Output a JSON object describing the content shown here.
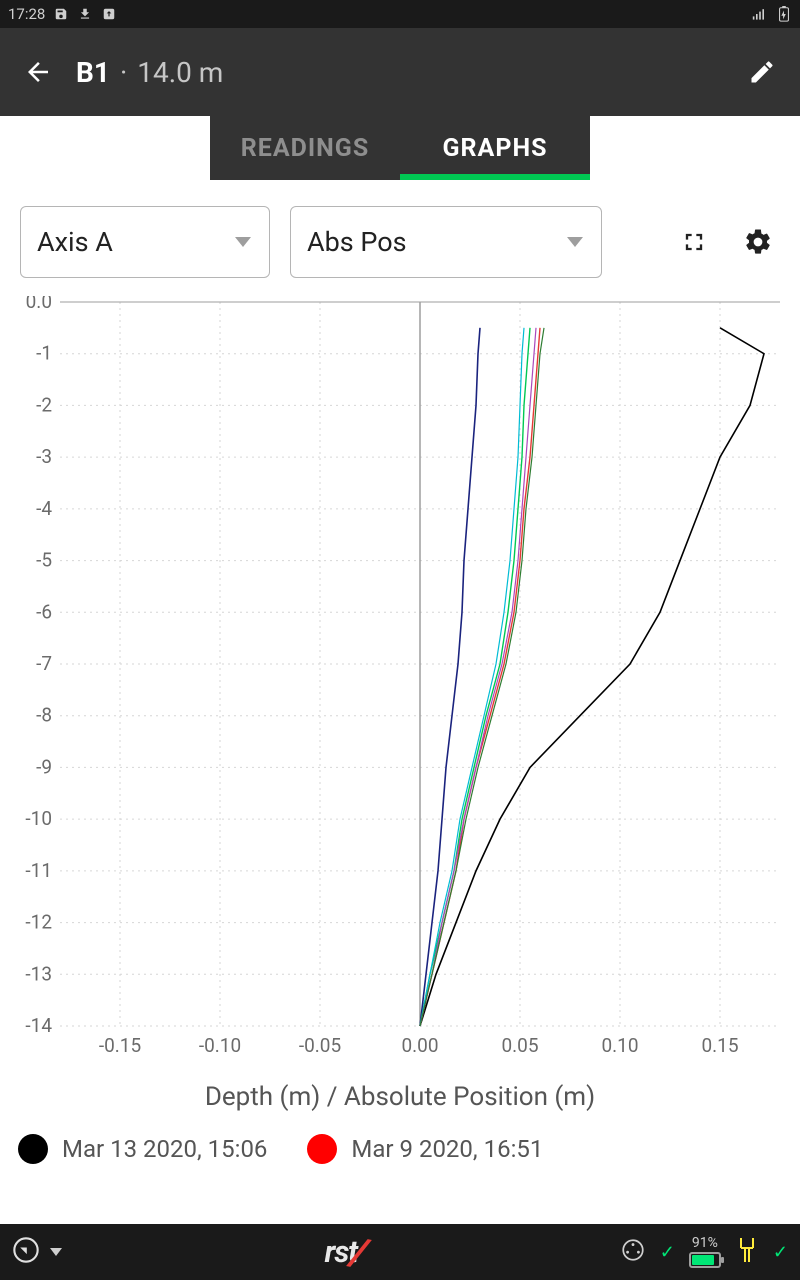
{
  "status": {
    "time": "17:28"
  },
  "appbar": {
    "title_main": "B1",
    "title_sep": "·",
    "title_sub": "14.0 m"
  },
  "tabs": {
    "readings": "READINGS",
    "graphs": "GRAPHS",
    "active": "graphs"
  },
  "selects": {
    "axis": "Axis A",
    "mode": "Abs Pos"
  },
  "chart": {
    "type": "line-vertical",
    "xlim": [
      -0.18,
      0.18
    ],
    "ylim": [
      -14,
      0
    ],
    "xticks": [
      -0.15,
      -0.1,
      -0.05,
      0.0,
      0.05,
      0.1,
      0.15
    ],
    "xtick_labels": [
      "-0.15",
      "-0.10",
      "-0.05",
      "0.00",
      "0.05",
      "0.10",
      "0.15"
    ],
    "yticks": [
      0,
      -1,
      -2,
      -3,
      -4,
      -5,
      -6,
      -7,
      -8,
      -9,
      -10,
      -11,
      -12,
      -13,
      -14
    ],
    "ytick_labels": [
      "0.0",
      "-1",
      "-2",
      "-3",
      "-4",
      "-5",
      "-6",
      "-7",
      "-8",
      "-9",
      "-10",
      "-11",
      "-12",
      "-13",
      "-14"
    ],
    "grid_color": "#d6d6d6",
    "background": "#ffffff",
    "axis_title": "Depth (m) / Absolute Position (m)",
    "series": [
      {
        "name": "blue",
        "color": "#1a237e",
        "width": 1.6,
        "points": [
          [
            0.03,
            -0.5
          ],
          [
            0.029,
            -1
          ],
          [
            0.028,
            -2
          ],
          [
            0.026,
            -3
          ],
          [
            0.024,
            -4
          ],
          [
            0.022,
            -5
          ],
          [
            0.021,
            -6
          ],
          [
            0.019,
            -7
          ],
          [
            0.016,
            -8
          ],
          [
            0.013,
            -9
          ],
          [
            0.011,
            -10
          ],
          [
            0.009,
            -11
          ],
          [
            0.006,
            -12
          ],
          [
            0.003,
            -13
          ],
          [
            0.0,
            -14
          ]
        ]
      },
      {
        "name": "black",
        "color": "#000000",
        "width": 1.6,
        "points": [
          [
            0.15,
            -0.5
          ],
          [
            0.172,
            -1
          ],
          [
            0.165,
            -2
          ],
          [
            0.15,
            -3
          ],
          [
            0.14,
            -4
          ],
          [
            0.13,
            -5
          ],
          [
            0.12,
            -6
          ],
          [
            0.105,
            -7
          ],
          [
            0.08,
            -8
          ],
          [
            0.055,
            -9
          ],
          [
            0.04,
            -10
          ],
          [
            0.028,
            -11
          ],
          [
            0.018,
            -12
          ],
          [
            0.008,
            -13
          ],
          [
            0.0,
            -14
          ]
        ]
      },
      {
        "name": "red",
        "color": "#e53935",
        "width": 1.4,
        "points": [
          [
            0.06,
            -0.5
          ],
          [
            0.059,
            -1
          ],
          [
            0.057,
            -2
          ],
          [
            0.055,
            -3
          ],
          [
            0.052,
            -4
          ],
          [
            0.05,
            -5
          ],
          [
            0.047,
            -6
          ],
          [
            0.042,
            -7
          ],
          [
            0.035,
            -8
          ],
          [
            0.028,
            -9
          ],
          [
            0.025,
            -9.5
          ],
          [
            0.022,
            -10
          ],
          [
            0.018,
            -11
          ],
          [
            0.012,
            -12
          ],
          [
            0.006,
            -13
          ],
          [
            0.0,
            -14
          ]
        ]
      },
      {
        "name": "green",
        "color": "#00c853",
        "width": 1.4,
        "points": [
          [
            0.055,
            -0.5
          ],
          [
            0.054,
            -1
          ],
          [
            0.052,
            -2
          ],
          [
            0.051,
            -3
          ],
          [
            0.049,
            -4
          ],
          [
            0.047,
            -5
          ],
          [
            0.044,
            -6
          ],
          [
            0.04,
            -7
          ],
          [
            0.033,
            -8
          ],
          [
            0.027,
            -9
          ],
          [
            0.024,
            -9.5
          ],
          [
            0.021,
            -10
          ],
          [
            0.017,
            -11
          ],
          [
            0.011,
            -12
          ],
          [
            0.005,
            -13
          ],
          [
            0.0,
            -14
          ]
        ]
      },
      {
        "name": "cyan",
        "color": "#00bcd4",
        "width": 1.2,
        "points": [
          [
            0.052,
            -0.5
          ],
          [
            0.051,
            -1
          ],
          [
            0.05,
            -2
          ],
          [
            0.049,
            -3
          ],
          [
            0.047,
            -4
          ],
          [
            0.045,
            -5
          ],
          [
            0.042,
            -6
          ],
          [
            0.038,
            -7
          ],
          [
            0.032,
            -8
          ],
          [
            0.026,
            -9
          ],
          [
            0.023,
            -9.5
          ],
          [
            0.02,
            -10
          ],
          [
            0.016,
            -11
          ],
          [
            0.01,
            -12
          ],
          [
            0.005,
            -13
          ],
          [
            0.0,
            -14
          ]
        ]
      },
      {
        "name": "magenta",
        "color": "#ab47bc",
        "width": 1.2,
        "points": [
          [
            0.058,
            -0.5
          ],
          [
            0.057,
            -1
          ],
          [
            0.055,
            -2
          ],
          [
            0.053,
            -3
          ],
          [
            0.051,
            -4
          ],
          [
            0.049,
            -5
          ],
          [
            0.046,
            -6
          ],
          [
            0.041,
            -7
          ],
          [
            0.034,
            -8
          ],
          [
            0.028,
            -9
          ],
          [
            0.025,
            -9.5
          ],
          [
            0.022,
            -10
          ],
          [
            0.017,
            -11
          ],
          [
            0.011,
            -12
          ],
          [
            0.006,
            -13
          ],
          [
            0.0,
            -14
          ]
        ]
      },
      {
        "name": "darkgreen",
        "color": "#2e7d32",
        "width": 1.2,
        "points": [
          [
            0.062,
            -0.5
          ],
          [
            0.06,
            -1
          ],
          [
            0.058,
            -2
          ],
          [
            0.056,
            -3
          ],
          [
            0.053,
            -4
          ],
          [
            0.051,
            -5
          ],
          [
            0.048,
            -6
          ],
          [
            0.043,
            -7
          ],
          [
            0.036,
            -8
          ],
          [
            0.029,
            -9
          ],
          [
            0.026,
            -9.5
          ],
          [
            0.023,
            -10
          ],
          [
            0.018,
            -11
          ],
          [
            0.012,
            -12
          ],
          [
            0.006,
            -13
          ],
          [
            0.0,
            -14
          ]
        ]
      }
    ]
  },
  "legend": [
    {
      "color": "#000000",
      "label": "Mar 13 2020, 15:06"
    },
    {
      "color": "#ff0000",
      "label": "Mar 9 2020, 16:51"
    }
  ],
  "bottom": {
    "battery_pct": "91%"
  }
}
